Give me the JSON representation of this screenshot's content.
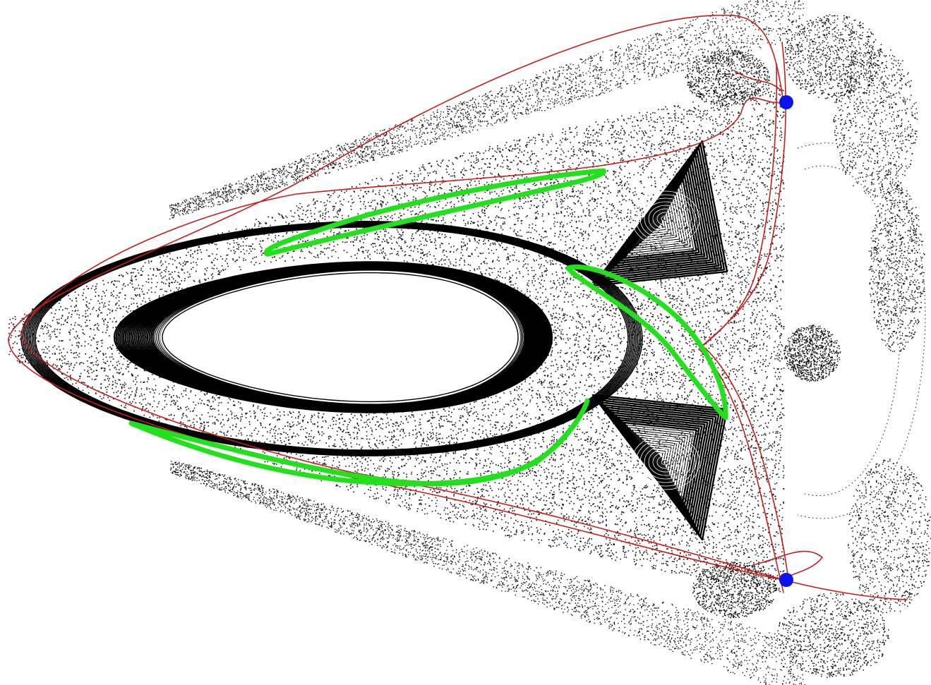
{
  "figure": {
    "kind": "phase-space portrait",
    "background": "#ffffff",
    "colors": {
      "chaotic_sea": "#111111",
      "islands": "#000000",
      "manifold": "#c41e1e",
      "curves": "#22e01c",
      "fixed_points": "#0a14f0"
    },
    "elements": [
      {
        "id": "chaotic-sea",
        "label": "",
        "kind": "dense point scatter"
      },
      {
        "id": "central-island",
        "label": "",
        "kind": "nested invariant curves"
      },
      {
        "id": "upper-island",
        "label": "",
        "kind": "nested invariant curves"
      },
      {
        "id": "lower-island",
        "label": "",
        "kind": "nested invariant curves"
      },
      {
        "id": "manifold",
        "label": "",
        "kind": "invariant manifold (red)"
      },
      {
        "id": "green-curves",
        "label": "",
        "kind": "iterated curve segments",
        "count": 3
      },
      {
        "id": "fixed-points",
        "label": "",
        "kind": "hyperbolic points",
        "count": 2
      }
    ]
  }
}
